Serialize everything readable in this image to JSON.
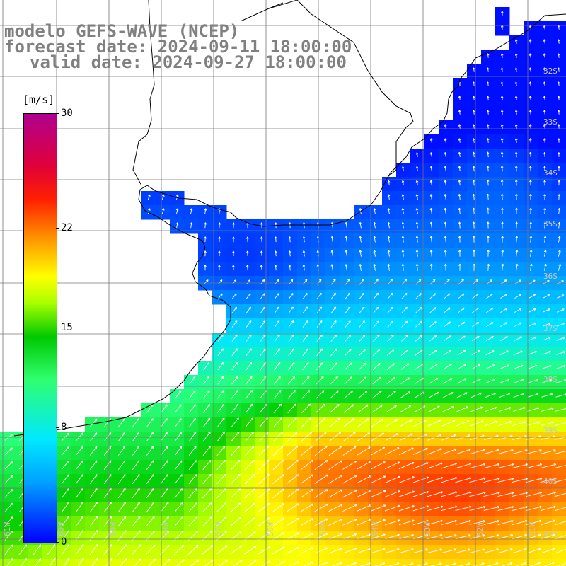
{
  "header": {
    "line1": "modelo GEFS-WAVE (NCEP)",
    "line2": "forecast date: 2024-09-11 18:00:00",
    "line3": "valid date: 2024-09-27 18:00:00"
  },
  "colorbar": {
    "unit": "[m/s]",
    "min": 0,
    "max": 30,
    "ticks": [
      {
        "value": 0,
        "label": "0"
      },
      {
        "value": 8,
        "label": "8"
      },
      {
        "value": 15,
        "label": "15"
      },
      {
        "value": 22,
        "label": "22"
      },
      {
        "value": 30,
        "label": "30"
      }
    ]
  },
  "map": {
    "lat_labels": [
      "32S",
      "33S",
      "34S",
      "35S",
      "36S",
      "37S",
      "38S",
      "39S",
      "40S",
      "41S"
    ],
    "lon_labels": [
      "61W",
      "60W",
      "59W",
      "58W",
      "57W",
      "56W",
      "55W",
      "54W",
      "53W",
      "52W",
      "51W"
    ],
    "colors": {
      "land": "#ffffff",
      "coast": "#000000",
      "grid": "#777777"
    }
  }
}
